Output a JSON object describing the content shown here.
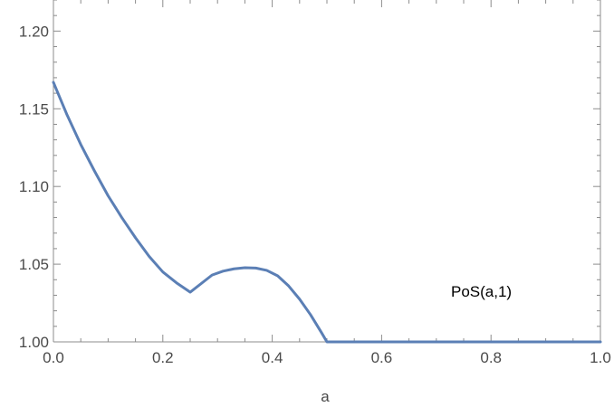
{
  "chart_data": {
    "type": "line",
    "title": "",
    "xlabel": "a",
    "ylabel": "",
    "xlim": [
      0.0,
      1.0
    ],
    "ylim": [
      1.0,
      1.22
    ],
    "x_ticks": [
      "0.0",
      "0.2",
      "0.4",
      "0.6",
      "0.8",
      "1.0"
    ],
    "y_ticks": [
      "1.00",
      "1.05",
      "1.10",
      "1.15",
      "1.20"
    ],
    "grid": false,
    "frame": true,
    "annotation": "PoS(a,1)",
    "series": [
      {
        "color": "#5b7fb5",
        "x": [
          0.0,
          0.025,
          0.05,
          0.075,
          0.1,
          0.125,
          0.15,
          0.175,
          0.2,
          0.225,
          0.25,
          0.29,
          0.31,
          0.33,
          0.35,
          0.37,
          0.39,
          0.41,
          0.43,
          0.45,
          0.47,
          0.49,
          0.5,
          0.6,
          0.7,
          0.8,
          0.9,
          1.0
        ],
        "y": [
          1.167,
          1.146,
          1.127,
          1.11,
          1.094,
          1.08,
          1.067,
          1.055,
          1.045,
          1.038,
          1.032,
          1.043,
          1.0455,
          1.047,
          1.0477,
          1.0475,
          1.046,
          1.0425,
          1.036,
          1.0275,
          1.0175,
          1.006,
          1.0,
          1.0,
          1.0,
          1.0,
          1.0,
          1.0
        ]
      }
    ]
  }
}
